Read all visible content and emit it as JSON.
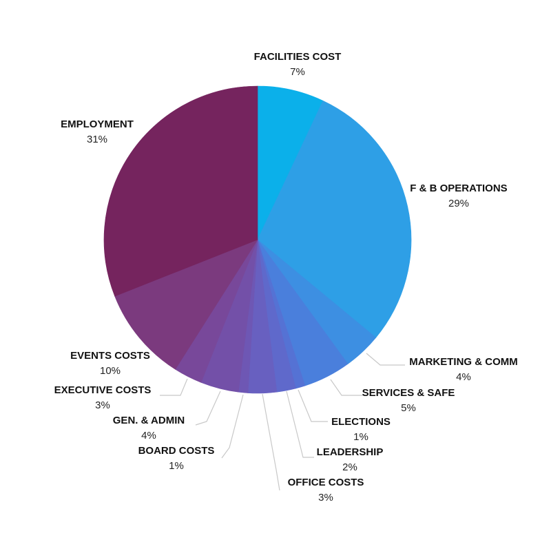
{
  "chart_data": {
    "type": "pie",
    "title": "",
    "slices": [
      {
        "label": "FACILITIES COST",
        "value": 7,
        "display": "7%",
        "color": "#0bb0ea"
      },
      {
        "label": "F & B OPERATIONS",
        "value": 29,
        "display": "29%",
        "color": "#2e9fe6"
      },
      {
        "label": "MARKETING & COMM",
        "value": 4,
        "display": "4%",
        "color": "#3d8fe2"
      },
      {
        "label": "SERVICES & SAFE",
        "value": 5,
        "display": "5%",
        "color": "#4a7fdc"
      },
      {
        "label": "ELECTIONS",
        "value": 1,
        "display": "1%",
        "color": "#5572d4"
      },
      {
        "label": "LEADERSHIP",
        "value": 2,
        "display": "2%",
        "color": "#5f69cb"
      },
      {
        "label": "OFFICE COSTS",
        "value": 3,
        "display": "3%",
        "color": "#6860c0"
      },
      {
        "label": "BOARD COSTS",
        "value": 1,
        "display": "1%",
        "color": "#6e57b4"
      },
      {
        "label": "GEN. & ADMIN",
        "value": 4,
        "display": "4%",
        "color": "#7350a8"
      },
      {
        "label": "EXECUTIVE COSTS",
        "value": 3,
        "display": "3%",
        "color": "#78489a"
      },
      {
        "label": "EVENTS COSTS",
        "value": 10,
        "display": "10%",
        "color": "#7b3a7e"
      },
      {
        "label": "EMPLOYMENT",
        "value": 31,
        "display": "31%",
        "color": "#75245e"
      }
    ]
  }
}
